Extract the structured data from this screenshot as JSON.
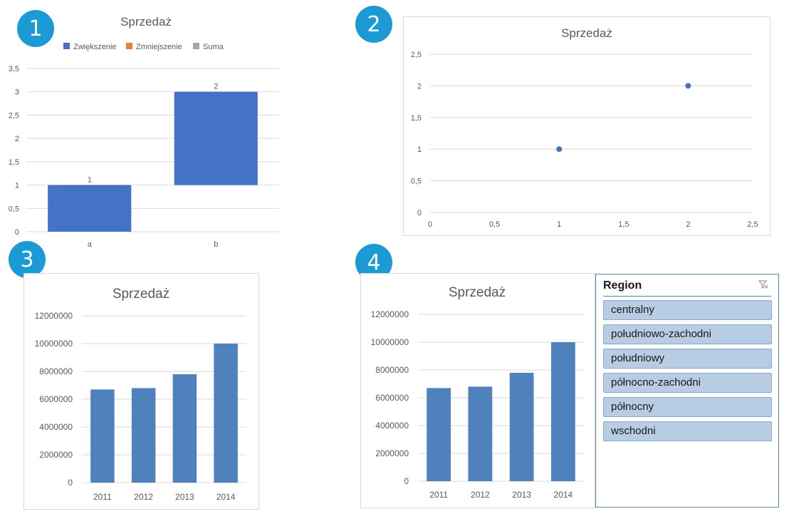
{
  "badges": [
    "1",
    "2",
    "3",
    "4"
  ],
  "slicer": {
    "title": "Region",
    "clear_icon": "clear-filter-icon",
    "items": [
      "centralny",
      "południowo-zachodni",
      "południowy",
      "północno-zachodni",
      "północny",
      "wschodni"
    ]
  },
  "colors": {
    "badge": "#1b9ad6",
    "increase": "#4472c4",
    "decrease": "#ed7d31",
    "total": "#a5a5a5",
    "column": "#4f81bd",
    "point": "#4472c4"
  },
  "chart_data": [
    {
      "type": "waterfall",
      "title": "Sprzedaż",
      "legend": [
        "Zwiększenie",
        "Zmniejszenie",
        "Suma"
      ],
      "legend_position": "top",
      "categories": [
        "a",
        "b"
      ],
      "values": [
        1,
        2
      ],
      "data_labels": [
        "1",
        "2"
      ],
      "ylim": [
        0,
        3.5
      ],
      "yticks": [
        "0",
        "0,5",
        "1",
        "1,5",
        "2",
        "2,5",
        "3",
        "3,5"
      ],
      "grid": true
    },
    {
      "type": "scatter",
      "title": "Sprzedaż",
      "x": [
        1,
        2
      ],
      "y": [
        1,
        2
      ],
      "xlim": [
        0,
        2.5
      ],
      "ylim": [
        0,
        2.5
      ],
      "xticks": [
        "0",
        "0,5",
        "1",
        "1,5",
        "2",
        "2,5"
      ],
      "yticks": [
        "0",
        "0,5",
        "1",
        "1,5",
        "2",
        "2,5"
      ],
      "grid": true
    },
    {
      "type": "bar",
      "title": "Sprzedaż",
      "categories": [
        "2011",
        "2012",
        "2013",
        "2014"
      ],
      "values": [
        6700000,
        6800000,
        7800000,
        10000000
      ],
      "ylim": [
        0,
        12000000
      ],
      "yticks": [
        "0",
        "2000000",
        "4000000",
        "6000000",
        "8000000",
        "10000000",
        "12000000"
      ],
      "grid": true
    },
    {
      "type": "bar",
      "title": "Sprzedaż",
      "categories": [
        "2011",
        "2012",
        "2013",
        "2014"
      ],
      "values": [
        6700000,
        6800000,
        7800000,
        10000000
      ],
      "ylim": [
        0,
        12000000
      ],
      "yticks": [
        "0",
        "2000000",
        "4000000",
        "6000000",
        "8000000",
        "10000000",
        "12000000"
      ],
      "grid": true
    }
  ]
}
